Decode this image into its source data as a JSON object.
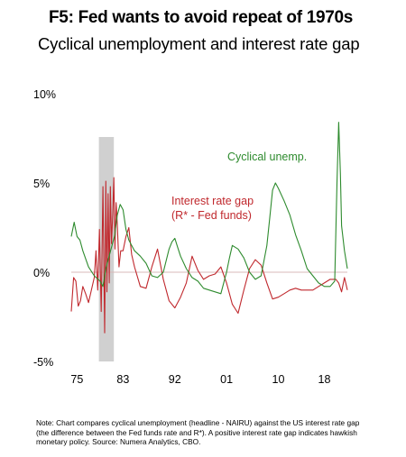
{
  "title": "F5: Fed wants to avoid repeat of 1970s",
  "subtitle": "Cyclical unemployment and interest rate gap",
  "note": "Note: Chart compares cyclical unemployment (headline - NAIRU) against the US interest rate gap (the difference between the Fed funds rate and R*). A positive interest rate gap indicates hawkish monetary policy. Source: Numera Analytics, CBO.",
  "colors": {
    "unemp": "#2e8b2e",
    "gap": "#c0282d",
    "shade": "#d0d0d0",
    "zero": "#d9b8b8"
  },
  "chart_data": {
    "type": "line",
    "xlim": [
      1974,
      2022
    ],
    "ylim": [
      -5,
      10
    ],
    "x_ticks": [
      {
        "x": 1975,
        "label": "75"
      },
      {
        "x": 1983,
        "label": "83"
      },
      {
        "x": 1992,
        "label": "92"
      },
      {
        "x": 2001,
        "label": "01"
      },
      {
        "x": 2010,
        "label": "10"
      },
      {
        "x": 2018,
        "label": "18"
      }
    ],
    "y_ticks": [
      {
        "y": 10,
        "label": "10%"
      },
      {
        "y": 5,
        "label": "5%"
      },
      {
        "y": 0,
        "label": "0%"
      },
      {
        "y": -5,
        "label": "-5%"
      }
    ],
    "shaded_region": [
      1978.8,
      1981.4
    ],
    "series": [
      {
        "name": "Cyclical unemp.",
        "key": "unemp",
        "x": [
          1974,
          1974.5,
          1975,
          1975.5,
          1976,
          1977,
          1978,
          1979,
          1979.5,
          1980,
          1980.5,
          1981,
          1981.5,
          1982,
          1982.5,
          1983,
          1983.5,
          1984,
          1985,
          1986,
          1987,
          1988,
          1989,
          1990,
          1991,
          1991.5,
          1992,
          1992.5,
          1993,
          1994,
          1995,
          1996,
          1997,
          1998,
          1999,
          2000,
          2001,
          2001.5,
          2002,
          2002.5,
          2003,
          2004,
          2005,
          2006,
          2007,
          2008,
          2008.5,
          2009,
          2009.5,
          2010,
          2011,
          2012,
          2013,
          2014,
          2015,
          2016,
          2017,
          2018,
          2019,
          2019.8,
          2020.2,
          2020.5,
          2020.8,
          2021,
          2021.5,
          2022
        ],
        "y": [
          2.0,
          2.8,
          2.0,
          1.8,
          1.2,
          0.3,
          -0.2,
          -0.5,
          -0.8,
          0.2,
          0.8,
          1.4,
          2.0,
          3.2,
          3.8,
          3.5,
          2.4,
          1.8,
          1.2,
          0.9,
          0.5,
          -0.2,
          -0.3,
          0.0,
          1.3,
          1.7,
          1.9,
          1.4,
          0.9,
          0.2,
          -0.3,
          -0.5,
          -0.9,
          -1.0,
          -1.1,
          -1.2,
          0.0,
          0.8,
          1.5,
          1.4,
          1.3,
          0.8,
          0.0,
          -0.4,
          -0.2,
          1.5,
          3.0,
          4.6,
          5.0,
          4.7,
          4.0,
          3.2,
          2.1,
          1.2,
          0.2,
          -0.2,
          -0.6,
          -0.8,
          -0.8,
          -0.5,
          5.0,
          8.4,
          5.5,
          2.6,
          1.2,
          0.2
        ]
      },
      {
        "name": "Interest rate gap\n(R* - Fed funds)",
        "key": "gap",
        "x": [
          1974,
          1974.4,
          1974.8,
          1975.2,
          1975.6,
          1976,
          1976.5,
          1977,
          1977.5,
          1978,
          1978.3,
          1978.6,
          1978.9,
          1979.2,
          1979.5,
          1979.8,
          1980,
          1980.2,
          1980.4,
          1980.6,
          1980.8,
          1981,
          1981.2,
          1981.4,
          1981.6,
          1981.8,
          1982,
          1982.3,
          1982.6,
          1983,
          1983.5,
          1984,
          1984.5,
          1985,
          1986,
          1987,
          1988,
          1989,
          1990,
          1991,
          1992,
          1993,
          1994,
          1995,
          1996,
          1997,
          1998,
          1999,
          2000,
          2001,
          2002,
          2003,
          2004,
          2005,
          2006,
          2007,
          2008,
          2009,
          2010,
          2011,
          2012,
          2013,
          2014,
          2015,
          2016,
          2017,
          2018,
          2019,
          2020,
          2020.5,
          2021,
          2021.5,
          2022
        ],
        "y": [
          -2.2,
          -0.3,
          -0.5,
          -1.9,
          -1.6,
          -0.8,
          -1.2,
          -1.7,
          -1.0,
          -0.3,
          1.2,
          -1.0,
          2.4,
          -2.2,
          4.8,
          -3.4,
          5.1,
          -1.1,
          4.4,
          -0.6,
          4.8,
          1.6,
          3.2,
          5.3,
          1.3,
          3.9,
          2.7,
          0.3,
          1.2,
          1.2,
          2.0,
          2.5,
          1.0,
          0.3,
          -0.8,
          -0.9,
          0.3,
          1.3,
          -0.4,
          -1.6,
          -2.0,
          -1.4,
          -0.6,
          0.9,
          0.1,
          -0.4,
          -0.2,
          -0.1,
          0.3,
          -0.6,
          -1.8,
          -2.3,
          -1.0,
          0.2,
          0.7,
          0.4,
          -0.6,
          -1.5,
          -1.4,
          -1.2,
          -1.0,
          -0.9,
          -1.0,
          -1.0,
          -1.0,
          -0.8,
          -0.6,
          -0.4,
          -0.4,
          -0.6,
          -1.1,
          -0.3,
          -1.0
        ]
      }
    ]
  }
}
